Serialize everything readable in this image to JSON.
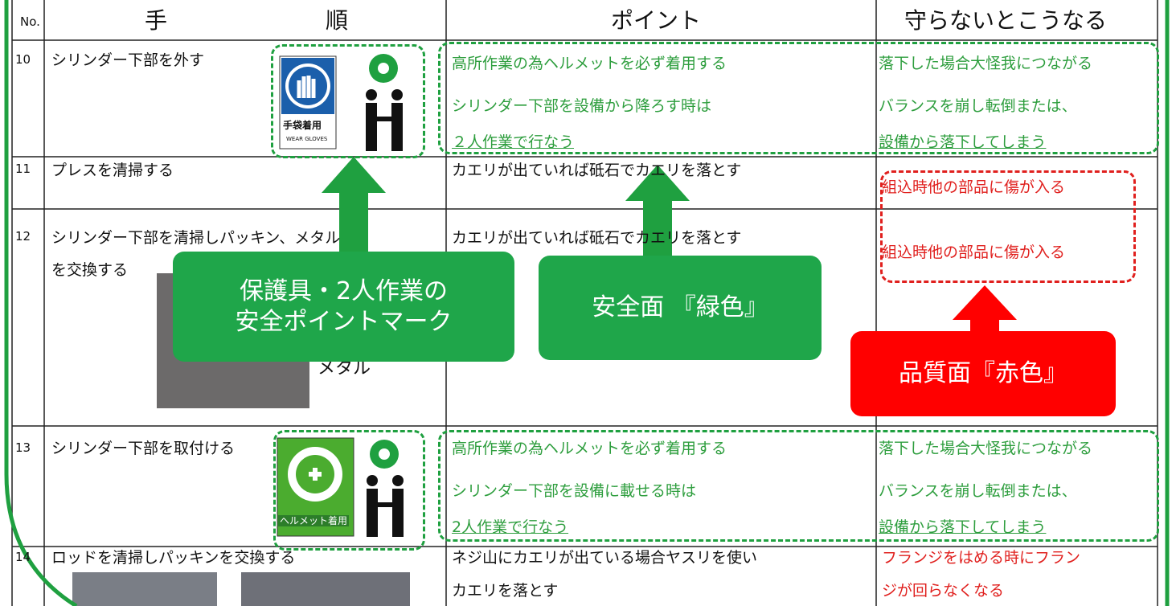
{
  "header": {
    "no": "No.",
    "step_1": "手",
    "step_2": "順",
    "point": "ポイント",
    "consequence": "守らないとこうなる"
  },
  "rows": [
    {
      "no": 10,
      "step": [
        "シリンダー下部を外す"
      ],
      "sign": [
        "手袋着用",
        "WEAR GLOVES"
      ],
      "point": [
        "高所作業の為ヘルメットを必ず着用する",
        "シリンダー下部を設備から降ろす時は",
        "２人作業で行なう"
      ],
      "consequence": [
        "落下した場合大怪我につながる",
        "バランスを崩し転倒または、",
        "設備から落下してしまう"
      ]
    },
    {
      "no": 11,
      "step": [
        "プレスを清掃する"
      ],
      "point": [
        "カエリが出ていれば砥石でカエリを落とす"
      ],
      "consequence": [
        "組込時他の部品に傷が入る"
      ]
    },
    {
      "no": 12,
      "step": [
        "シリンダー下部を清掃しパッキン、メタル",
        "を交換する"
      ],
      "photo_label": "メタル",
      "point": [
        "カエリが出ていれば砥石でカエリを落とす"
      ],
      "consequence": [
        "組込時他の部品に傷が入る"
      ]
    },
    {
      "no": 13,
      "step": [
        "シリンダー下部を取付ける"
      ],
      "sign": [
        "ヘルメット着用"
      ],
      "point": [
        "高所作業の為ヘルメットを必ず着用する",
        "シリンダー下部を設備に載せる時は",
        "2人作業で行なう"
      ],
      "consequence": [
        "落下した場合大怪我につながる",
        "バランスを崩し転倒または、",
        "設備から落下してしまう"
      ]
    },
    {
      "no": 14,
      "step": [
        "ロッドを清掃しパッキンを交換する"
      ],
      "point": [
        "ネジ山にカエリが出ている場合ヤスリを使い",
        "カエリを落とす"
      ],
      "consequence": [
        "フランジをはめる時にフラン",
        "ジが回らなくなる"
      ]
    }
  ],
  "callouts": [
    {
      "lines": [
        "保護具・2人作業の",
        "安全ポイントマーク"
      ]
    },
    {
      "lines": [
        "安全面 『緑色』"
      ]
    },
    {
      "lines": [
        "品質面『赤色』"
      ]
    }
  ]
}
